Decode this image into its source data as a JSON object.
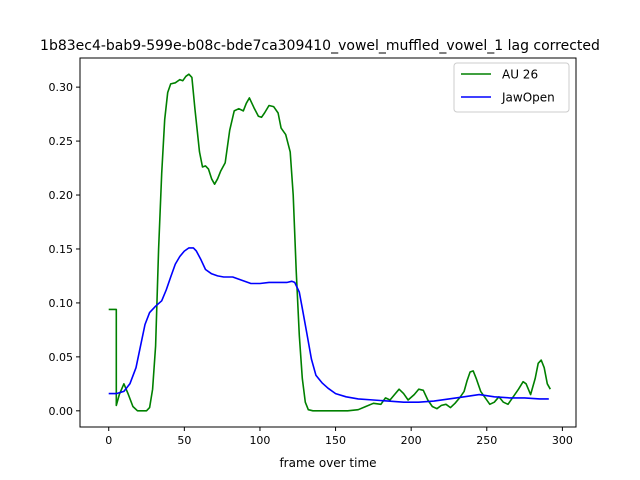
{
  "chart_data": {
    "type": "line",
    "title": "1b83ec4-bab9-599e-b08c-bde7ca309410_vowel_muffled_vowel_1  lag corrected",
    "xlabel": "frame over time",
    "ylabel": "",
    "xlim": [
      -19,
      309
    ],
    "ylim": [
      -0.015,
      0.327
    ],
    "x_ticks": [
      0,
      50,
      100,
      150,
      200,
      250,
      300
    ],
    "y_ticks": [
      0.0,
      0.05,
      0.1,
      0.15,
      0.2,
      0.25,
      0.3
    ],
    "x_tick_labels": [
      "0",
      "50",
      "100",
      "150",
      "200",
      "250",
      "300"
    ],
    "y_tick_labels": [
      "0.00",
      "0.05",
      "0.10",
      "0.15",
      "0.20",
      "0.25",
      "0.30"
    ],
    "grid": false,
    "legend_position": "top-right",
    "series": [
      {
        "name": "AU 26",
        "color": "#008000",
        "points": [
          [
            0,
            0.094
          ],
          [
            5,
            0.094
          ],
          [
            5,
            0.005
          ],
          [
            7,
            0.015
          ],
          [
            10,
            0.025
          ],
          [
            13,
            0.015
          ],
          [
            16,
            0.004
          ],
          [
            19,
            0.0
          ],
          [
            25,
            0.0
          ],
          [
            27,
            0.003
          ],
          [
            29,
            0.02
          ],
          [
            31,
            0.06
          ],
          [
            33,
            0.15
          ],
          [
            35,
            0.22
          ],
          [
            37,
            0.27
          ],
          [
            39,
            0.295
          ],
          [
            41,
            0.303
          ],
          [
            44,
            0.304
          ],
          [
            47,
            0.307
          ],
          [
            49,
            0.306
          ],
          [
            51,
            0.31
          ],
          [
            53,
            0.312
          ],
          [
            55,
            0.309
          ],
          [
            57,
            0.28
          ],
          [
            60,
            0.24
          ],
          [
            62,
            0.226
          ],
          [
            64,
            0.227
          ],
          [
            66,
            0.224
          ],
          [
            68,
            0.215
          ],
          [
            70,
            0.21
          ],
          [
            72,
            0.215
          ],
          [
            74,
            0.222
          ],
          [
            77,
            0.23
          ],
          [
            80,
            0.26
          ],
          [
            83,
            0.278
          ],
          [
            86,
            0.28
          ],
          [
            89,
            0.278
          ],
          [
            91,
            0.285
          ],
          [
            93,
            0.29
          ],
          [
            96,
            0.281
          ],
          [
            99,
            0.273
          ],
          [
            101,
            0.272
          ],
          [
            103,
            0.276
          ],
          [
            106,
            0.283
          ],
          [
            109,
            0.282
          ],
          [
            112,
            0.276
          ],
          [
            114,
            0.262
          ],
          [
            117,
            0.256
          ],
          [
            120,
            0.24
          ],
          [
            122,
            0.2
          ],
          [
            124,
            0.13
          ],
          [
            126,
            0.07
          ],
          [
            128,
            0.03
          ],
          [
            130,
            0.008
          ],
          [
            132,
            0.001
          ],
          [
            135,
            0.0
          ],
          [
            145,
            0.0
          ],
          [
            158,
            0.0
          ],
          [
            165,
            0.001
          ],
          [
            170,
            0.004
          ],
          [
            175,
            0.007
          ],
          [
            180,
            0.006
          ],
          [
            183,
            0.012
          ],
          [
            186,
            0.01
          ],
          [
            189,
            0.015
          ],
          [
            192,
            0.02
          ],
          [
            195,
            0.016
          ],
          [
            198,
            0.01
          ],
          [
            202,
            0.015
          ],
          [
            205,
            0.02
          ],
          [
            208,
            0.019
          ],
          [
            211,
            0.01
          ],
          [
            214,
            0.004
          ],
          [
            217,
            0.002
          ],
          [
            220,
            0.005
          ],
          [
            223,
            0.006
          ],
          [
            226,
            0.003
          ],
          [
            229,
            0.007
          ],
          [
            232,
            0.012
          ],
          [
            235,
            0.018
          ],
          [
            237,
            0.028
          ],
          [
            239,
            0.036
          ],
          [
            241,
            0.037
          ],
          [
            243,
            0.03
          ],
          [
            246,
            0.018
          ],
          [
            249,
            0.012
          ],
          [
            252,
            0.006
          ],
          [
            255,
            0.008
          ],
          [
            258,
            0.013
          ],
          [
            261,
            0.008
          ],
          [
            264,
            0.006
          ],
          [
            268,
            0.014
          ],
          [
            271,
            0.02
          ],
          [
            274,
            0.027
          ],
          [
            276,
            0.025
          ],
          [
            279,
            0.015
          ],
          [
            282,
            0.03
          ],
          [
            284,
            0.044
          ],
          [
            286,
            0.047
          ],
          [
            288,
            0.04
          ],
          [
            290,
            0.025
          ],
          [
            292,
            0.02
          ]
        ]
      },
      {
        "name": "JawOpen",
        "color": "#0000ff",
        "points": [
          [
            0,
            0.016
          ],
          [
            5,
            0.016
          ],
          [
            10,
            0.018
          ],
          [
            14,
            0.025
          ],
          [
            18,
            0.04
          ],
          [
            21,
            0.06
          ],
          [
            24,
            0.08
          ],
          [
            27,
            0.091
          ],
          [
            31,
            0.097
          ],
          [
            35,
            0.102
          ],
          [
            38,
            0.112
          ],
          [
            41,
            0.124
          ],
          [
            44,
            0.136
          ],
          [
            47,
            0.143
          ],
          [
            50,
            0.148
          ],
          [
            53,
            0.151
          ],
          [
            56,
            0.151
          ],
          [
            58,
            0.148
          ],
          [
            61,
            0.14
          ],
          [
            64,
            0.131
          ],
          [
            68,
            0.127
          ],
          [
            72,
            0.125
          ],
          [
            76,
            0.124
          ],
          [
            82,
            0.124
          ],
          [
            88,
            0.121
          ],
          [
            94,
            0.118
          ],
          [
            100,
            0.118
          ],
          [
            106,
            0.119
          ],
          [
            112,
            0.119
          ],
          [
            118,
            0.119
          ],
          [
            121,
            0.12
          ],
          [
            123,
            0.119
          ],
          [
            126,
            0.11
          ],
          [
            128,
            0.095
          ],
          [
            131,
            0.072
          ],
          [
            134,
            0.048
          ],
          [
            137,
            0.033
          ],
          [
            141,
            0.026
          ],
          [
            145,
            0.021
          ],
          [
            150,
            0.016
          ],
          [
            157,
            0.013
          ],
          [
            165,
            0.011
          ],
          [
            175,
            0.01
          ],
          [
            185,
            0.009
          ],
          [
            195,
            0.008
          ],
          [
            205,
            0.008
          ],
          [
            215,
            0.009
          ],
          [
            225,
            0.011
          ],
          [
            235,
            0.013
          ],
          [
            245,
            0.015
          ],
          [
            255,
            0.013
          ],
          [
            265,
            0.012
          ],
          [
            275,
            0.012
          ],
          [
            285,
            0.011
          ],
          [
            291,
            0.011
          ]
        ]
      }
    ]
  }
}
